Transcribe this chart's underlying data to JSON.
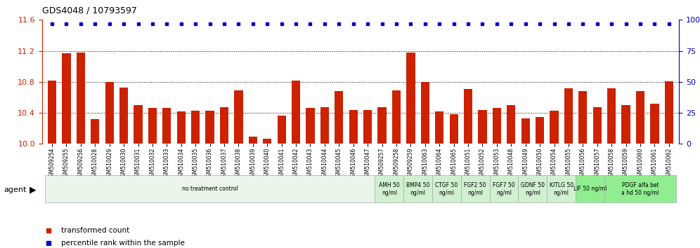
{
  "title": "GDS4048 / 10793597",
  "samples": [
    "GSM509254",
    "GSM509255",
    "GSM509256",
    "GSM510028",
    "GSM510029",
    "GSM510030",
    "GSM510031",
    "GSM510032",
    "GSM510033",
    "GSM510034",
    "GSM510035",
    "GSM510036",
    "GSM510037",
    "GSM510038",
    "GSM510039",
    "GSM510040",
    "GSM510041",
    "GSM510042",
    "GSM510043",
    "GSM510044",
    "GSM510045",
    "GSM510046",
    "GSM510047",
    "GSM509257",
    "GSM509258",
    "GSM509259",
    "GSM510063",
    "GSM510064",
    "GSM510065",
    "GSM510051",
    "GSM510052",
    "GSM510053",
    "GSM510048",
    "GSM510049",
    "GSM510050",
    "GSM510054",
    "GSM510055",
    "GSM510056",
    "GSM510057",
    "GSM510058",
    "GSM510059",
    "GSM510060",
    "GSM510061",
    "GSM510062"
  ],
  "bar_values": [
    10.82,
    11.17,
    11.18,
    10.32,
    10.8,
    10.73,
    10.5,
    10.46,
    10.46,
    10.42,
    10.43,
    10.43,
    10.47,
    10.69,
    10.09,
    10.07,
    10.36,
    10.82,
    10.46,
    10.47,
    10.68,
    10.44,
    10.44,
    10.47,
    10.69,
    11.18,
    10.8,
    10.42,
    10.38,
    10.71,
    10.44,
    10.46,
    10.5,
    10.33,
    10.35,
    10.43,
    10.72,
    10.68,
    10.47,
    10.72,
    10.5,
    10.68,
    10.52,
    10.81
  ],
  "percentile_values": [
    97,
    97,
    97,
    97,
    97,
    97,
    97,
    97,
    97,
    97,
    97,
    97,
    97,
    97,
    97,
    97,
    97,
    97,
    97,
    97,
    97,
    97,
    97,
    97,
    97,
    97,
    97,
    97,
    97,
    97,
    97,
    97,
    97,
    97,
    97,
    97,
    97,
    97,
    97,
    97,
    97,
    97,
    97,
    97
  ],
  "ylim_left": [
    10.0,
    11.6
  ],
  "ylim_right": [
    0,
    100
  ],
  "yticks_left": [
    10.0,
    10.4,
    10.8,
    11.2,
    11.6
  ],
  "yticks_right": [
    0,
    25,
    50,
    75,
    100
  ],
  "bar_color": "#cc2200",
  "dot_color": "#0000cc",
  "agent_groups": [
    {
      "label": "no treatment control",
      "start": 0,
      "end": 23,
      "color": "#e8f5e8"
    },
    {
      "label": "AMH 50\nng/ml",
      "start": 23,
      "end": 25,
      "color": "#d0f0d0"
    },
    {
      "label": "BMP4 50\nng/ml",
      "start": 25,
      "end": 27,
      "color": "#d0f0d0"
    },
    {
      "label": "CTGF 50\nng/ml",
      "start": 27,
      "end": 29,
      "color": "#d0f0d0"
    },
    {
      "label": "FGF2 50\nng/ml",
      "start": 29,
      "end": 31,
      "color": "#d0f0d0"
    },
    {
      "label": "FGF7 50\nng/ml",
      "start": 31,
      "end": 33,
      "color": "#d0f0d0"
    },
    {
      "label": "GDNF 50\nng/ml",
      "start": 33,
      "end": 35,
      "color": "#d0f0d0"
    },
    {
      "label": "KITLG 50\nng/ml",
      "start": 35,
      "end": 37,
      "color": "#d0f0d0"
    },
    {
      "label": "LIF 50 ng/ml",
      "start": 37,
      "end": 39,
      "color": "#90ee90"
    },
    {
      "label": "PDGF alfa bet\na hd 50 ng/ml",
      "start": 39,
      "end": 44,
      "color": "#90ee90"
    }
  ],
  "legend_items": [
    {
      "label": "transformed count",
      "color": "#cc2200",
      "marker": "s"
    },
    {
      "label": "percentile rank within the sample",
      "color": "#0000cc",
      "marker": "s"
    }
  ]
}
